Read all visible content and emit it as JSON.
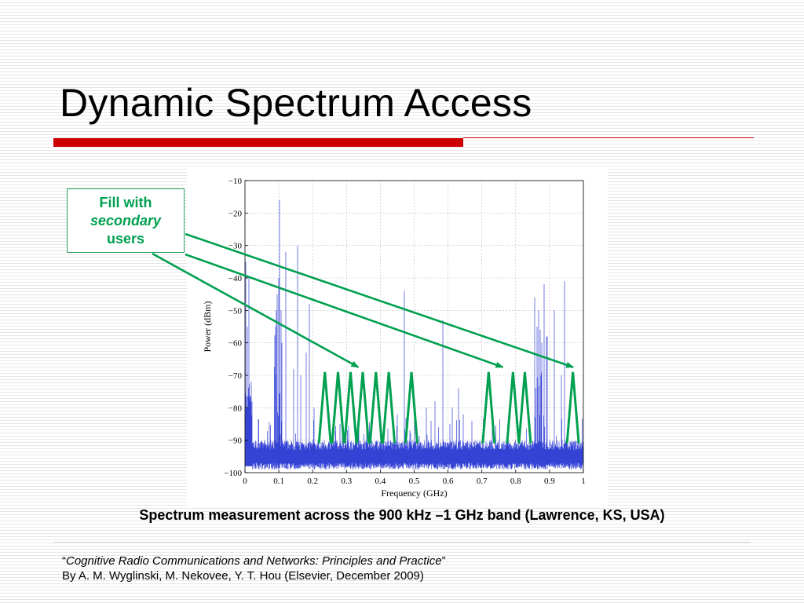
{
  "slide": {
    "title": "Dynamic Spectrum Access",
    "accent_color": "#cc0000",
    "callout": {
      "line1": "Fill with",
      "line2": "secondary",
      "line3": "users",
      "color": "#00a050"
    },
    "caption": "Spectrum measurement across the 900 kHz –1 GHz band  (Lawrence, KS, USA)",
    "reference": {
      "open_quote": "“",
      "book_title": "Cognitive Radio Communications and Networks: Principles and Practice",
      "close_quote": "”",
      "authors": "By A. M. Wyglinski, M. Nekovee, Y. T. Hou (Elsevier, December 2009)"
    }
  },
  "chart_data": {
    "type": "line",
    "xlabel": "Frequency (GHz)",
    "ylabel": "Power (dBm)",
    "xlim": [
      0,
      1
    ],
    "ylim": [
      -100,
      -10
    ],
    "x_ticks": [
      "0",
      "0.1",
      "0.2",
      "0.3",
      "0.4",
      "0.5",
      "0.6",
      "0.7",
      "0.8",
      "0.9",
      "1"
    ],
    "y_ticks": [
      "−10",
      "−20",
      "−30",
      "−40",
      "−50",
      "−60",
      "−70",
      "−80",
      "−90",
      "−100"
    ],
    "grid": true,
    "noise_floor_dbm": -95,
    "series_color": "#1f2fd0",
    "peaks": [
      {
        "f": 0.002,
        "p": -35
      },
      {
        "f": 0.006,
        "p": -55
      },
      {
        "f": 0.012,
        "p": -40
      },
      {
        "f": 0.018,
        "p": -72
      },
      {
        "f": 0.022,
        "p": -78
      },
      {
        "f": 0.09,
        "p": -55
      },
      {
        "f": 0.093,
        "p": -50
      },
      {
        "f": 0.096,
        "p": -45
      },
      {
        "f": 0.1,
        "p": -40
      },
      {
        "f": 0.103,
        "p": -16
      },
      {
        "f": 0.106,
        "p": -50
      },
      {
        "f": 0.11,
        "p": -60
      },
      {
        "f": 0.12,
        "p": -32
      },
      {
        "f": 0.145,
        "p": -68
      },
      {
        "f": 0.155,
        "p": -30
      },
      {
        "f": 0.165,
        "p": -70
      },
      {
        "f": 0.182,
        "p": -63
      },
      {
        "f": 0.19,
        "p": -48
      },
      {
        "f": 0.205,
        "p": -80
      },
      {
        "f": 0.28,
        "p": -85
      },
      {
        "f": 0.36,
        "p": -85
      },
      {
        "f": 0.45,
        "p": -82
      },
      {
        "f": 0.47,
        "p": -44
      },
      {
        "f": 0.5,
        "p": -82
      },
      {
        "f": 0.535,
        "p": -80
      },
      {
        "f": 0.55,
        "p": -84
      },
      {
        "f": 0.562,
        "p": -78
      },
      {
        "f": 0.585,
        "p": -53
      },
      {
        "f": 0.605,
        "p": -85
      },
      {
        "f": 0.612,
        "p": -80
      },
      {
        "f": 0.63,
        "p": -74
      },
      {
        "f": 0.645,
        "p": -82
      },
      {
        "f": 0.67,
        "p": -84
      },
      {
        "f": 0.73,
        "p": -86
      },
      {
        "f": 0.855,
        "p": -46
      },
      {
        "f": 0.862,
        "p": -55
      },
      {
        "f": 0.868,
        "p": -50
      },
      {
        "f": 0.873,
        "p": -56
      },
      {
        "f": 0.878,
        "p": -60
      },
      {
        "f": 0.884,
        "p": -42
      },
      {
        "f": 0.89,
        "p": -58
      },
      {
        "f": 0.915,
        "p": -50
      },
      {
        "f": 0.935,
        "p": -70
      },
      {
        "f": 0.945,
        "p": -41
      }
    ],
    "bands": [
      {
        "f0": 0.085,
        "f1": 0.11,
        "p": -55
      },
      {
        "f0": 0.855,
        "f1": 0.895,
        "p": -57
      }
    ],
    "overlay": {
      "color": "#00a050",
      "secondary_user_triangles": [
        {
          "f": 0.236,
          "top_dbm": -69,
          "bottom_dbm": -91
        },
        {
          "f": 0.275,
          "top_dbm": -69,
          "bottom_dbm": -91
        },
        {
          "f": 0.312,
          "top_dbm": -69,
          "bottom_dbm": -91
        },
        {
          "f": 0.348,
          "top_dbm": -69,
          "bottom_dbm": -91
        },
        {
          "f": 0.387,
          "top_dbm": -69,
          "bottom_dbm": -91
        },
        {
          "f": 0.425,
          "top_dbm": -69,
          "bottom_dbm": -91
        },
        {
          "f": 0.492,
          "top_dbm": -69,
          "bottom_dbm": -91
        },
        {
          "f": 0.72,
          "top_dbm": -69,
          "bottom_dbm": -91
        },
        {
          "f": 0.792,
          "top_dbm": -69,
          "bottom_dbm": -91
        },
        {
          "f": 0.827,
          "top_dbm": -69,
          "bottom_dbm": -91
        },
        {
          "f": 0.969,
          "top_dbm": -69,
          "bottom_dbm": -91
        }
      ],
      "arrow_targets": [
        {
          "f": 0.335,
          "p": -67.5
        },
        {
          "f": 0.762,
          "p": -67.5
        },
        {
          "f": 0.97,
          "p": -67.5
        }
      ]
    }
  }
}
